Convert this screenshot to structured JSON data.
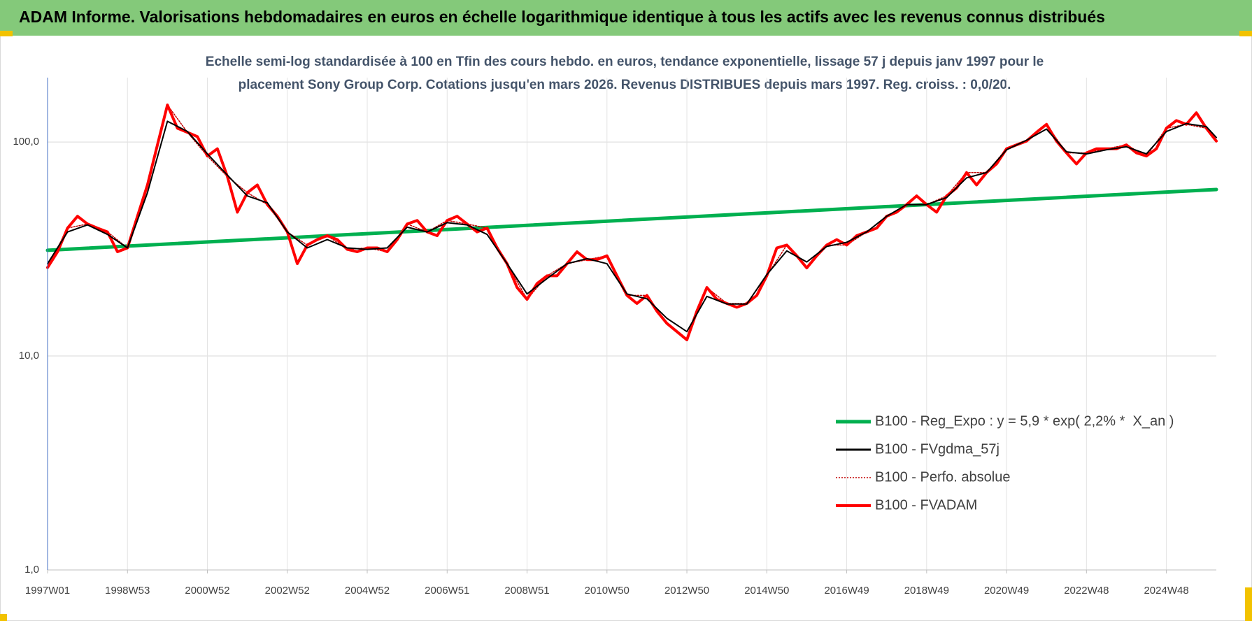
{
  "chart_data": {
    "type": "line",
    "title": "ADAM Informe. Valorisations hebdomadaires en euros en échelle logarithmique identique à tous les actifs avec les revenus connus distribués",
    "subtitle": [
      "Echelle semi-log standardisée à 100 en Tfin des cours hebdo. en euros, tendance exponentielle, lissage 57 j depuis janv 1997 pour le",
      "placement Sony Group Corp. Cotations jusqu'en mars 2026. Revenus DISTRIBUES depuis mars 1997. Reg. croiss. : 0,0/20."
    ],
    "yscale": "log",
    "ylim": [
      1,
      200
    ],
    "yticks": [
      {
        "value": 1,
        "label": "1,0"
      },
      {
        "value": 10,
        "label": "10,0"
      },
      {
        "value": 100,
        "label": "100,0"
      }
    ],
    "xlim": [
      1997.0,
      2026.25
    ],
    "xticks": [
      {
        "value": 1997,
        "label": "1997W01"
      },
      {
        "value": 1999,
        "label": "1998W53"
      },
      {
        "value": 2001,
        "label": "2000W52"
      },
      {
        "value": 2003,
        "label": "2002W52"
      },
      {
        "value": 2005,
        "label": "2004W52"
      },
      {
        "value": 2007,
        "label": "2006W51"
      },
      {
        "value": 2009,
        "label": "2008W51"
      },
      {
        "value": 2011,
        "label": "2010W50"
      },
      {
        "value": 2013,
        "label": "2012W50"
      },
      {
        "value": 2015,
        "label": "2014W50"
      },
      {
        "value": 2017,
        "label": "2016W49"
      },
      {
        "value": 2019,
        "label": "2018W49"
      },
      {
        "value": 2021,
        "label": "2020W49"
      },
      {
        "value": 2023,
        "label": "2022W48"
      },
      {
        "value": 2025,
        "label": "2024W48"
      }
    ],
    "grid": true,
    "legend": "lower right",
    "series": [
      {
        "name": "B100 - Reg_Expo : y = 5,9 * exp( 2,2% *  X_an )",
        "color": "#00b050",
        "line_style": "solid",
        "x": [
          1997.0,
          2026.25
        ],
        "values": [
          31.2,
          60
        ]
      },
      {
        "name": "B100 - FVgdma_57j",
        "color": "#000000",
        "line_style": "solid",
        "x": [
          1997.0,
          1997.5,
          1998.0,
          1998.5,
          1999.0,
          1999.5,
          2000.0,
          2000.5,
          2001.0,
          2001.5,
          2002.0,
          2002.5,
          2003.0,
          2003.5,
          2004.0,
          2004.5,
          2005.0,
          2005.5,
          2006.0,
          2006.5,
          2007.0,
          2007.5,
          2008.0,
          2008.5,
          2009.0,
          2009.5,
          2010.0,
          2010.5,
          2011.0,
          2011.5,
          2012.0,
          2012.5,
          2013.0,
          2013.5,
          2014.0,
          2014.5,
          2015.0,
          2015.5,
          2016.0,
          2016.5,
          2017.0,
          2017.5,
          2018.0,
          2018.5,
          2019.0,
          2019.5,
          2020.0,
          2020.5,
          2021.0,
          2021.5,
          2022.0,
          2022.5,
          2023.0,
          2023.5,
          2024.0,
          2024.5,
          2025.0,
          2025.5,
          2026.0,
          2026.25
        ],
        "values": [
          27,
          38,
          41,
          37,
          32,
          58,
          125,
          112,
          88,
          70,
          56,
          52,
          38,
          32,
          35,
          32,
          31.5,
          32,
          40,
          38,
          42,
          41,
          37,
          27,
          19.5,
          23,
          27,
          28.5,
          27,
          19.5,
          18.5,
          15,
          13,
          19,
          17.5,
          17.5,
          24,
          31,
          27.5,
          32.5,
          34,
          38,
          45,
          51,
          51,
          55,
          68,
          72,
          92,
          102,
          115,
          90,
          88,
          92,
          95,
          88,
          112,
          122,
          118,
          105
        ]
      },
      {
        "name": "B100 - Perfo. absolue",
        "color": "#c00000",
        "line_style": "dotted",
        "x": [
          1997.0,
          1997.5,
          1998.0,
          1998.5,
          1999.0,
          1999.5,
          2000.0,
          2000.5,
          2001.0,
          2001.5,
          2002.0,
          2002.5,
          2003.0,
          2003.5,
          2004.0,
          2004.5,
          2005.0,
          2005.5,
          2006.0,
          2006.5,
          2007.0,
          2007.5,
          2008.0,
          2008.5,
          2009.0,
          2009.5,
          2010.0,
          2010.5,
          2011.0,
          2011.5,
          2012.0,
          2012.5,
          2013.0,
          2013.5,
          2014.0,
          2014.5,
          2015.0,
          2015.5,
          2016.0,
          2016.5,
          2017.0,
          2017.5,
          2018.0,
          2018.5,
          2019.0,
          2019.5,
          2020.0,
          2020.5,
          2021.0,
          2021.5,
          2022.0,
          2022.5,
          2023.0,
          2023.5,
          2024.0,
          2024.5,
          2025.0,
          2025.5,
          2026.0,
          2026.25
        ],
        "values": [
          25.9,
          39.6,
          41.4,
          38,
          32,
          63,
          149,
          111,
          86,
          69,
          58,
          51,
          38,
          33,
          36.5,
          31.5,
          32,
          30.7,
          41.4,
          38,
          43,
          41.4,
          39.6,
          27,
          18.4,
          23.7,
          27,
          28.2,
          29.4,
          19.2,
          19.2,
          14.2,
          11.9,
          20.9,
          17.6,
          17.6,
          23.7,
          33,
          25.8,
          33,
          33,
          38,
          45,
          51,
          51,
          56,
          72,
          72,
          93,
          101,
          121,
          89,
          89,
          93,
          97,
          86,
          116,
          121,
          116,
          101
        ]
      },
      {
        "name": "B100 - FVADAM",
        "color": "#ff0000",
        "line_style": "solid",
        "x": [
          1997.0,
          1997.25,
          1997.5,
          1997.75,
          1998.0,
          1998.25,
          1998.5,
          1998.75,
          1999.0,
          1999.25,
          1999.5,
          1999.75,
          2000.0,
          2000.25,
          2000.5,
          2000.75,
          2001.0,
          2001.25,
          2001.5,
          2001.75,
          2002.0,
          2002.25,
          2002.5,
          2002.75,
          2003.0,
          2003.25,
          2003.5,
          2003.75,
          2004.0,
          2004.25,
          2004.5,
          2004.75,
          2005.0,
          2005.25,
          2005.5,
          2005.75,
          2006.0,
          2006.25,
          2006.5,
          2006.75,
          2007.0,
          2007.25,
          2007.5,
          2007.75,
          2008.0,
          2008.25,
          2008.5,
          2008.75,
          2009.0,
          2009.25,
          2009.5,
          2009.75,
          2010.0,
          2010.25,
          2010.5,
          2010.75,
          2011.0,
          2011.25,
          2011.5,
          2011.75,
          2012.0,
          2012.25,
          2012.5,
          2012.75,
          2013.0,
          2013.25,
          2013.5,
          2013.75,
          2014.0,
          2014.25,
          2014.5,
          2014.75,
          2015.0,
          2015.25,
          2015.5,
          2015.75,
          2016.0,
          2016.25,
          2016.5,
          2016.75,
          2017.0,
          2017.25,
          2017.5,
          2017.75,
          2018.0,
          2018.25,
          2018.5,
          2018.75,
          2019.0,
          2019.25,
          2019.5,
          2019.75,
          2020.0,
          2020.25,
          2020.5,
          2020.75,
          2021.0,
          2021.25,
          2021.5,
          2021.75,
          2022.0,
          2022.25,
          2022.5,
          2022.75,
          2023.0,
          2023.25,
          2023.5,
          2023.75,
          2024.0,
          2024.25,
          2024.5,
          2024.75,
          2025.0,
          2025.25,
          2025.5,
          2025.75,
          2026.0,
          2026.25
        ],
        "values": [
          25.9,
          30.7,
          39.6,
          45,
          41.4,
          39.6,
          38,
          30.7,
          32,
          45,
          63,
          97,
          149,
          116,
          111,
          106,
          86,
          93,
          69,
          47,
          58,
          63,
          51,
          45,
          38,
          27,
          33,
          35,
          36.5,
          35,
          31.5,
          30.7,
          32,
          32,
          30.7,
          35,
          41.4,
          43,
          38,
          36.5,
          43,
          45,
          41.4,
          38,
          39.6,
          32,
          27,
          20.9,
          18.4,
          21.8,
          23.7,
          23.7,
          27,
          30.7,
          28.2,
          28.2,
          29.4,
          23.7,
          19.2,
          17.6,
          19.2,
          16.2,
          14.2,
          13.0,
          11.9,
          16.2,
          20.9,
          18.4,
          17.6,
          16.9,
          17.6,
          19.2,
          23.7,
          32,
          33,
          29.4,
          25.8,
          29.4,
          33,
          35,
          33,
          36.5,
          38,
          39.6,
          45,
          47,
          51,
          56,
          51,
          47,
          56,
          61,
          72,
          63,
          72,
          79,
          93,
          97,
          101,
          111,
          121,
          101,
          89,
          79,
          89,
          93,
          93,
          93,
          97,
          89,
          86,
          93,
          116,
          126,
          121,
          137,
          116,
          101
        ]
      }
    ]
  }
}
